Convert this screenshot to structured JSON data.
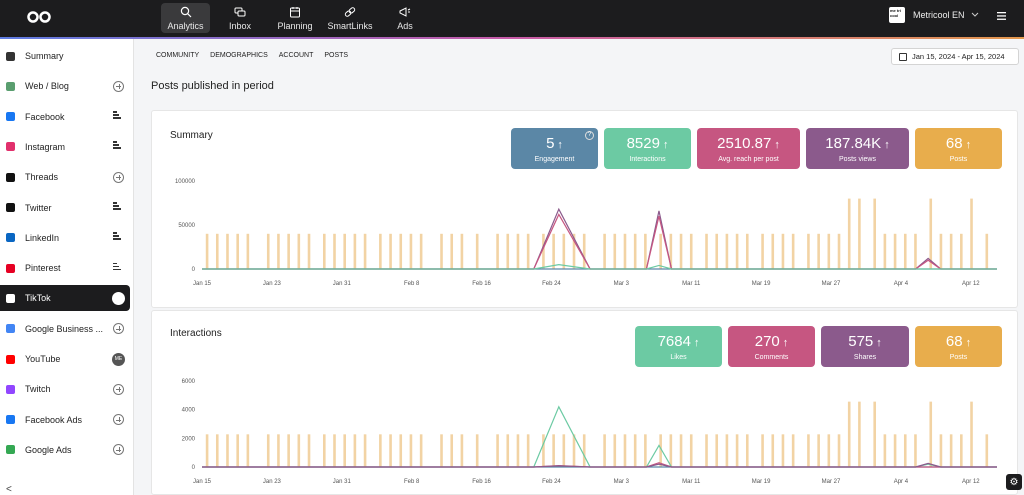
{
  "nav": {
    "items": [
      {
        "label": "Analytics",
        "icon": "analytics-icon",
        "active": true
      },
      {
        "label": "Inbox",
        "icon": "inbox-icon",
        "active": false
      },
      {
        "label": "Planning",
        "icon": "calendar-icon",
        "active": false
      },
      {
        "label": "SmartLinks",
        "icon": "link-icon",
        "active": false
      },
      {
        "label": "Ads",
        "icon": "megaphone-icon",
        "active": false
      }
    ],
    "brand_name": "Metricool EN",
    "brand_logo_text": "me tri cool"
  },
  "sidebar": {
    "items": [
      {
        "label": "Summary",
        "icon": "summary-icon",
        "color": "#333333",
        "action": "none"
      },
      {
        "label": "Web / Blog",
        "icon": "rss-icon",
        "color": "#5a9e6f",
        "action": "plus"
      },
      {
        "label": "Facebook",
        "icon": "facebook-icon",
        "color": "#1877f2",
        "action": "bars"
      },
      {
        "label": "Instagram",
        "icon": "instagram-icon",
        "color": "#e1306c",
        "action": "bars"
      },
      {
        "label": "Threads",
        "icon": "threads-icon",
        "color": "#111111",
        "action": "plus"
      },
      {
        "label": "Twitter",
        "icon": "twitter-x-icon",
        "color": "#111111",
        "action": "bars"
      },
      {
        "label": "LinkedIn",
        "icon": "linkedin-icon",
        "color": "#0a66c2",
        "action": "bars"
      },
      {
        "label": "Pinterest",
        "icon": "pinterest-icon",
        "color": "#e60023",
        "action": "bars"
      },
      {
        "label": "TikTok",
        "icon": "tiktok-icon",
        "color": "#ffffff",
        "action": "avatar",
        "selected": true
      },
      {
        "label": "Google Business ...",
        "icon": "google-business-icon",
        "color": "#4285f4",
        "action": "plus"
      },
      {
        "label": "YouTube",
        "icon": "youtube-icon",
        "color": "#ff0000",
        "action": "me"
      },
      {
        "label": "Twitch",
        "icon": "twitch-icon",
        "color": "#9146ff",
        "action": "plus"
      },
      {
        "label": "Facebook Ads",
        "icon": "facebook-ads-icon",
        "color": "#1877f2",
        "action": "plus"
      },
      {
        "label": "Google Ads",
        "icon": "google-ads-icon",
        "color": "#34a853",
        "action": "plus"
      }
    ],
    "me_badge": "ME",
    "collapse_glyph": "<"
  },
  "subtabs": [
    "COMMUNITY",
    "DEMOGRAPHICS",
    "ACCOUNT",
    "POSTS"
  ],
  "date_range": "Jan 15, 2024 - Apr 15, 2024",
  "page_title": "Posts published in period",
  "summary": {
    "title": "Summary",
    "kpis": [
      {
        "value": "5",
        "label": "Engagement",
        "color": "#5b87a6",
        "info": "?"
      },
      {
        "value": "8529",
        "label": "Interactions",
        "color": "#6ccaa3"
      },
      {
        "value": "2510.87",
        "label": "Avg. reach per post",
        "color": "#c65681"
      },
      {
        "value": "187.84K",
        "label": "Posts views",
        "color": "#8b5a8c"
      },
      {
        "value": "68",
        "label": "Posts",
        "color": "#e8ad4c"
      }
    ],
    "arrow": "↑"
  },
  "interactions": {
    "title": "Interactions",
    "kpis": [
      {
        "value": "7684",
        "label": "Likes",
        "color": "#6ccaa3"
      },
      {
        "value": "270",
        "label": "Comments",
        "color": "#c65681"
      },
      {
        "value": "575",
        "label": "Shares",
        "color": "#8b5a8c"
      },
      {
        "value": "68",
        "label": "Posts",
        "color": "#e8ad4c"
      }
    ]
  },
  "chart_data": [
    {
      "type": "bar",
      "title": "",
      "x_ticks": [
        "Jan 15",
        "Jan 23",
        "Jan 31",
        "Feb 8",
        "Feb 16",
        "Feb 24",
        "Mar 3",
        "Mar 11",
        "Mar 19",
        "Mar 27",
        "Apr 4",
        "Apr 12"
      ],
      "y_ticks": [
        "0",
        "50000",
        "100000"
      ],
      "ylim": [
        0,
        100000
      ],
      "grid": false,
      "bar_color": "#f2d3a4",
      "bar_days": [
        1,
        3,
        5,
        7,
        9,
        13,
        15,
        17,
        19,
        21,
        24,
        26,
        28,
        30,
        32,
        35,
        37,
        39,
        41,
        43,
        47,
        49,
        51,
        54,
        58,
        60,
        62,
        64,
        67,
        69,
        71,
        73,
        75,
        79,
        81,
        83,
        85,
        87,
        90,
        92,
        94,
        96,
        99,
        101,
        103,
        105,
        107,
        110,
        112,
        114,
        116,
        119,
        121,
        123,
        125,
        127,
        129,
        132,
        134,
        136,
        138,
        140,
        143,
        145,
        147,
        149,
        151,
        154
      ],
      "bar_values": [
        40000,
        40000,
        40000,
        40000,
        40000,
        40000,
        40000,
        40000,
        40000,
        40000,
        40000,
        40000,
        40000,
        40000,
        40000,
        40000,
        40000,
        40000,
        40000,
        40000,
        40000,
        40000,
        40000,
        40000,
        40000,
        40000,
        40000,
        40000,
        40000,
        40000,
        40000,
        40000,
        40000,
        40000,
        40000,
        40000,
        40000,
        40000,
        40000,
        40000,
        40000,
        40000,
        40000,
        40000,
        40000,
        40000,
        40000,
        40000,
        40000,
        40000,
        40000,
        40000,
        40000,
        40000,
        40000,
        80000,
        80000,
        80000,
        40000,
        40000,
        40000,
        40000,
        80000,
        40000,
        40000,
        40000,
        80000,
        40000
      ],
      "series": [
        {
          "name": "",
          "color": "#8b5a8c",
          "points": [
            [
              0,
              0
            ],
            [
              53,
              0
            ],
            [
              57,
              68000
            ],
            [
              62,
              0
            ],
            [
              71,
              0
            ],
            [
              73,
              66000
            ],
            [
              75,
              0
            ],
            [
              114,
              0
            ],
            [
              116,
              12000
            ],
            [
              118,
              0
            ],
            [
              127,
              0
            ]
          ]
        },
        {
          "name": "",
          "color": "#c65681",
          "points": [
            [
              0,
              0
            ],
            [
              53,
              0
            ],
            [
              57,
              62000
            ],
            [
              62,
              0
            ],
            [
              71,
              0
            ],
            [
              73,
              60000
            ],
            [
              75,
              0
            ],
            [
              114,
              0
            ],
            [
              116,
              10000
            ],
            [
              118,
              0
            ],
            [
              127,
              0
            ]
          ]
        },
        {
          "name": "",
          "color": "#6ccaa3",
          "points": [
            [
              0,
              0
            ],
            [
              53,
              0
            ],
            [
              57,
              5000
            ],
            [
              62,
              0
            ],
            [
              71,
              0
            ],
            [
              73,
              4000
            ],
            [
              75,
              0
            ],
            [
              127,
              0
            ]
          ]
        }
      ]
    },
    {
      "type": "bar",
      "title": "",
      "x_ticks": [
        "Jan 15",
        "Jan 23",
        "Jan 31",
        "Feb 8",
        "Feb 16",
        "Feb 24",
        "Mar 3",
        "Mar 11",
        "Mar 19",
        "Mar 27",
        "Apr 4",
        "Apr 12"
      ],
      "y_ticks": [
        "0",
        "2000",
        "4000",
        "6000"
      ],
      "ylim": [
        0,
        6000
      ],
      "grid": false,
      "bar_color": "#f2d3a4",
      "series": [
        {
          "name": "",
          "color": "#6ccaa3",
          "points": [
            [
              0,
              0
            ],
            [
              53,
              0
            ],
            [
              57,
              4200
            ],
            [
              62,
              0
            ],
            [
              71,
              0
            ],
            [
              73,
              1500
            ],
            [
              75,
              0
            ],
            [
              114,
              0
            ],
            [
              116,
              200
            ],
            [
              118,
              0
            ],
            [
              127,
              0
            ]
          ]
        },
        {
          "name": "",
          "color": "#c65681",
          "points": [
            [
              0,
              0
            ],
            [
              53,
              0
            ],
            [
              57,
              100
            ],
            [
              62,
              0
            ],
            [
              71,
              0
            ],
            [
              73,
              300
            ],
            [
              75,
              0
            ],
            [
              127,
              0
            ]
          ]
        },
        {
          "name": "",
          "color": "#8b5a8c",
          "points": [
            [
              0,
              0
            ],
            [
              53,
              0
            ],
            [
              57,
              80
            ],
            [
              62,
              0
            ],
            [
              71,
              0
            ],
            [
              73,
              200
            ],
            [
              75,
              0
            ],
            [
              114,
              0
            ],
            [
              116,
              250
            ],
            [
              118,
              0
            ],
            [
              127,
              0
            ]
          ]
        }
      ]
    }
  ]
}
